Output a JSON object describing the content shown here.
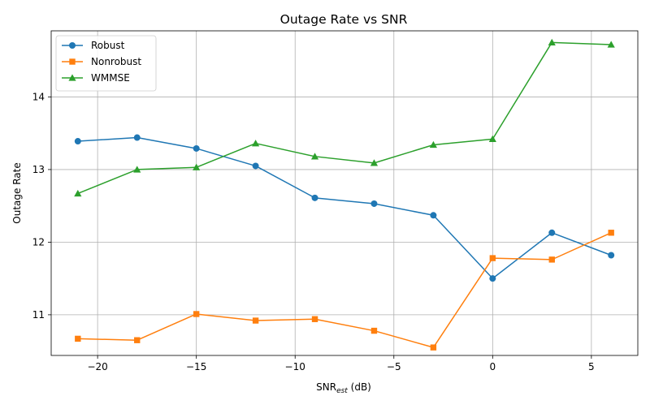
{
  "chart_data": {
    "type": "line",
    "title": "Outage Rate vs SNR",
    "xlabel_main": "SNR",
    "xlabel_sub": "est",
    "xlabel_unit": " (dB)",
    "ylabel": "Outage Rate",
    "xlim": [
      -22.35,
      7.35
    ],
    "ylim": [
      10.44,
      14.91
    ],
    "xticks": [
      -20,
      -15,
      -10,
      -5,
      0,
      5
    ],
    "xtick_labels": [
      "−20",
      "−15",
      "−10",
      "−5",
      "0",
      "5"
    ],
    "yticks": [
      11,
      12,
      13,
      14
    ],
    "ytick_labels": [
      "11",
      "12",
      "13",
      "14"
    ],
    "grid": true,
    "legend_position": "top-left",
    "x": [
      -21,
      -18,
      -15,
      -12,
      -9,
      -6,
      -3,
      0,
      3,
      6
    ],
    "series": [
      {
        "name": "Robust",
        "color": "#1f77b4",
        "marker": "circle",
        "values": [
          13.39,
          13.44,
          13.29,
          13.05,
          12.61,
          12.53,
          12.37,
          11.5,
          12.13,
          11.82
        ]
      },
      {
        "name": "Nonrobust",
        "color": "#ff7f0e",
        "marker": "square",
        "values": [
          10.67,
          10.65,
          11.01,
          10.92,
          10.94,
          10.78,
          10.55,
          11.78,
          11.76,
          12.13
        ]
      },
      {
        "name": "WMMSE",
        "color": "#2ca02c",
        "marker": "triangle",
        "values": [
          12.67,
          13.0,
          13.03,
          13.36,
          13.18,
          13.09,
          13.34,
          13.42,
          14.75,
          14.72
        ]
      }
    ]
  }
}
